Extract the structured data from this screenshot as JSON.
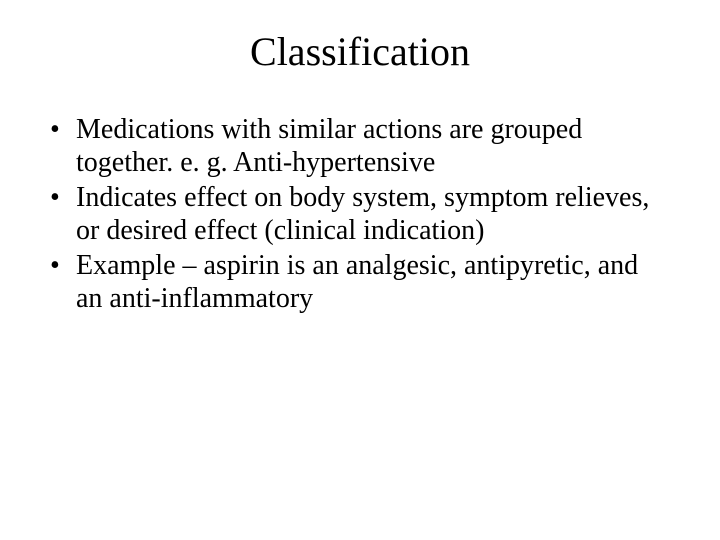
{
  "slide": {
    "title": "Classification",
    "title_fontsize": 40,
    "body_fontsize": 28,
    "background_color": "#ffffff",
    "text_color": "#000000",
    "font_family": "Times New Roman",
    "bullets": [
      "Medications with similar actions are grouped together.   e. g.  Anti-hypertensive",
      "Indicates effect on body system, symptom relieves, or desired effect (clinical indication)",
      "Example – aspirin is an analgesic, antipyretic, and an anti-inflammatory"
    ]
  }
}
